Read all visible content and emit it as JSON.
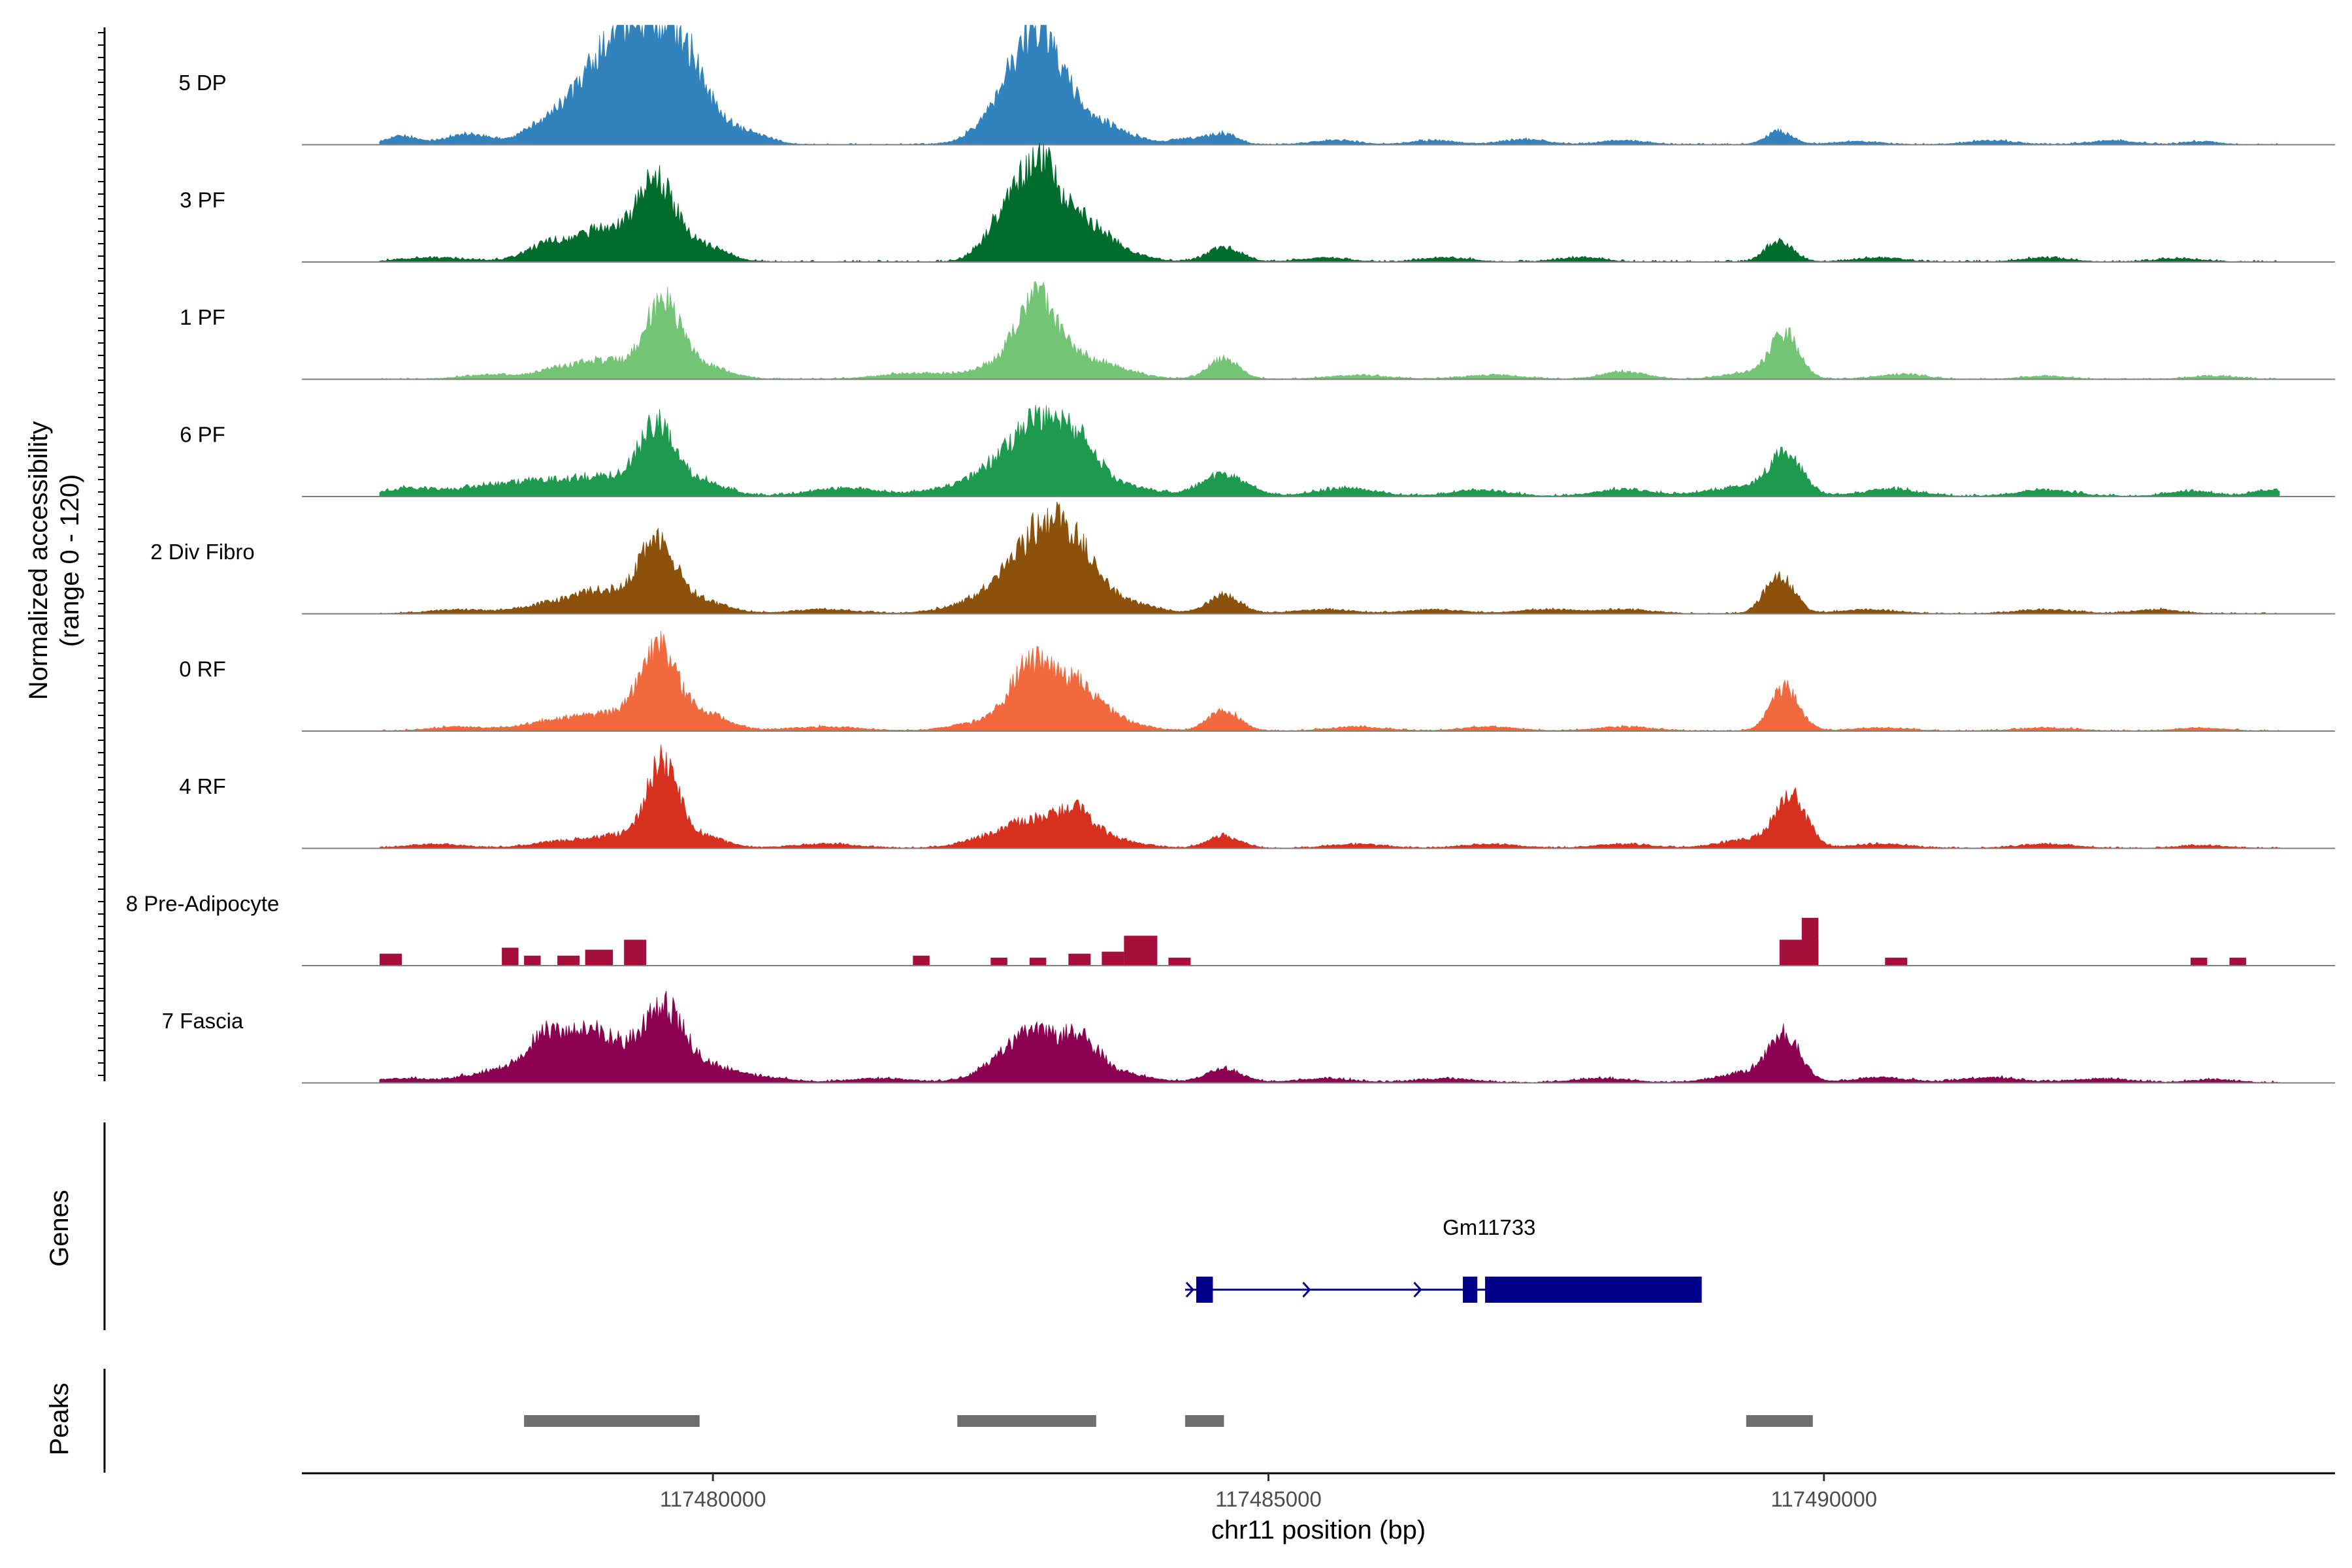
{
  "chart_data": {
    "type": "area",
    "title": "",
    "xlabel": "chr11 position (bp)",
    "ylabel_line1": "Normalized accessibility",
    "ylabel_line2": "(range 0 - 120)",
    "yrange": [
      0,
      120
    ],
    "xlim": [
      117476300,
      117494600
    ],
    "xticks": [
      {
        "value": 117480000,
        "label": "117480000"
      },
      {
        "value": 117485000,
        "label": "117485000"
      },
      {
        "value": 117490000,
        "label": "117490000"
      }
    ],
    "tracks": [
      {
        "name": "5 DP",
        "color": "#3182bd",
        "peaks": [
          [
            117477200,
            8,
            150
          ],
          [
            117477800,
            10,
            200
          ],
          [
            117478500,
            18,
            200
          ],
          [
            117478900,
            38,
            250
          ],
          [
            117479150,
            70,
            220
          ],
          [
            117479500,
            80,
            220
          ],
          [
            117479750,
            60,
            200
          ],
          [
            117480100,
            12,
            180
          ],
          [
            117480400,
            8,
            150
          ],
          [
            117482550,
            25,
            200
          ],
          [
            117482800,
            55,
            180
          ],
          [
            117483000,
            60,
            180
          ],
          [
            117483300,
            28,
            250
          ],
          [
            117483700,
            6,
            200
          ],
          [
            117484300,
            6,
            150
          ],
          [
            117484600,
            10,
            120
          ],
          [
            117485600,
            4,
            200
          ],
          [
            117486500,
            4,
            200
          ],
          [
            117487300,
            5,
            200
          ],
          [
            117488200,
            4,
            200
          ],
          [
            117489600,
            13,
            120
          ],
          [
            117490300,
            3,
            200
          ],
          [
            117491500,
            4,
            200
          ],
          [
            117492600,
            4,
            200
          ],
          [
            117493400,
            3,
            150
          ]
        ],
        "floor": 1.5
      },
      {
        "name": "3 PF",
        "color": "#006d2c",
        "peaks": [
          [
            117477500,
            4,
            300
          ],
          [
            117478500,
            14,
            200
          ],
          [
            117478900,
            18,
            250
          ],
          [
            117479150,
            20,
            220
          ],
          [
            117479500,
            75,
            160
          ],
          [
            117479900,
            16,
            200
          ],
          [
            117482650,
            48,
            180
          ],
          [
            117482950,
            80,
            160
          ],
          [
            117483300,
            40,
            220
          ],
          [
            117483700,
            8,
            200
          ],
          [
            117484600,
            14,
            150
          ],
          [
            117485500,
            4,
            200
          ],
          [
            117486600,
            4,
            200
          ],
          [
            117487800,
            4,
            200
          ],
          [
            117489600,
            22,
            120
          ],
          [
            117490500,
            4,
            200
          ],
          [
            117492000,
            4,
            200
          ],
          [
            117493200,
            3,
            200
          ]
        ],
        "floor": 2
      },
      {
        "name": "1 PF",
        "color": "#74c476",
        "peaks": [
          [
            117478000,
            4,
            250
          ],
          [
            117478600,
            8,
            200
          ],
          [
            117479050,
            18,
            250
          ],
          [
            117479550,
            75,
            150
          ],
          [
            117479900,
            14,
            220
          ],
          [
            117481800,
            6,
            300
          ],
          [
            117482600,
            14,
            250
          ],
          [
            117482900,
            70,
            160
          ],
          [
            117483200,
            22,
            250
          ],
          [
            117483600,
            8,
            250
          ],
          [
            117484600,
            20,
            140
          ],
          [
            117485800,
            4,
            250
          ],
          [
            117487000,
            4,
            250
          ],
          [
            117488200,
            7,
            200
          ],
          [
            117489300,
            6,
            200
          ],
          [
            117489650,
            45,
            130
          ],
          [
            117490700,
            5,
            200
          ],
          [
            117492000,
            3,
            200
          ],
          [
            117493500,
            3,
            200
          ]
        ],
        "floor": 1.5
      },
      {
        "name": "6 PF",
        "color": "#1d9a4e",
        "peaks": [
          [
            117477300,
            8,
            250
          ],
          [
            117478000,
            10,
            250
          ],
          [
            117478500,
            14,
            250
          ],
          [
            117479050,
            18,
            250
          ],
          [
            117479500,
            68,
            160
          ],
          [
            117479900,
            14,
            220
          ],
          [
            117481200,
            8,
            300
          ],
          [
            117482150,
            8,
            250
          ],
          [
            117482600,
            30,
            220
          ],
          [
            117482950,
            62,
            200
          ],
          [
            117483300,
            46,
            180
          ],
          [
            117483700,
            10,
            250
          ],
          [
            117484600,
            22,
            200
          ],
          [
            117485700,
            8,
            250
          ],
          [
            117486900,
            6,
            250
          ],
          [
            117488200,
            7,
            250
          ],
          [
            117489200,
            8,
            250
          ],
          [
            117489650,
            42,
            150
          ],
          [
            117490600,
            7,
            250
          ],
          [
            117492000,
            6,
            250
          ],
          [
            117493300,
            5,
            200
          ],
          [
            117494000,
            6,
            150
          ]
        ],
        "floor": 2.5
      },
      {
        "name": "2 Div Fibro",
        "color": "#8c510a",
        "peaks": [
          [
            117477700,
            4,
            250
          ],
          [
            117478500,
            8,
            250
          ],
          [
            117479000,
            22,
            250
          ],
          [
            117479500,
            68,
            170
          ],
          [
            117479900,
            12,
            220
          ],
          [
            117481000,
            4,
            300
          ],
          [
            117482300,
            8,
            250
          ],
          [
            117482700,
            35,
            220
          ],
          [
            117483000,
            68,
            180
          ],
          [
            117483300,
            52,
            180
          ],
          [
            117483700,
            12,
            250
          ],
          [
            117484600,
            18,
            150
          ],
          [
            117485500,
            4,
            250
          ],
          [
            117486500,
            4,
            250
          ],
          [
            117487500,
            4,
            250
          ],
          [
            117488200,
            4,
            250
          ],
          [
            117489600,
            38,
            130
          ],
          [
            117490400,
            4,
            250
          ],
          [
            117492000,
            4,
            250
          ],
          [
            117493000,
            4,
            200
          ]
        ],
        "floor": 1.5
      },
      {
        "name": "0 RF",
        "color": "#f16a3e",
        "peaks": [
          [
            117477700,
            4,
            250
          ],
          [
            117478500,
            8,
            250
          ],
          [
            117479000,
            16,
            250
          ],
          [
            117479500,
            82,
            160
          ],
          [
            117479900,
            18,
            220
          ],
          [
            117481000,
            4,
            300
          ],
          [
            117482400,
            8,
            250
          ],
          [
            117482850,
            62,
            180
          ],
          [
            117483250,
            44,
            200
          ],
          [
            117483600,
            10,
            250
          ],
          [
            117484600,
            20,
            140
          ],
          [
            117485800,
            4,
            250
          ],
          [
            117487000,
            4,
            250
          ],
          [
            117488200,
            4,
            250
          ],
          [
            117489650,
            42,
            130
          ],
          [
            117490500,
            3,
            250
          ],
          [
            117492000,
            3,
            250
          ],
          [
            117493400,
            3,
            200
          ]
        ],
        "floor": 1.5
      },
      {
        "name": "4 RF",
        "color": "#d7301f",
        "peaks": [
          [
            117477500,
            4,
            250
          ],
          [
            117478600,
            6,
            250
          ],
          [
            117479150,
            12,
            250
          ],
          [
            117479550,
            82,
            140
          ],
          [
            117479900,
            12,
            200
          ],
          [
            117481000,
            4,
            300
          ],
          [
            117482500,
            10,
            250
          ],
          [
            117482850,
            22,
            200
          ],
          [
            117483250,
            36,
            170
          ],
          [
            117483600,
            8,
            250
          ],
          [
            117484600,
            12,
            150
          ],
          [
            117485800,
            4,
            250
          ],
          [
            117487000,
            4,
            250
          ],
          [
            117488200,
            4,
            250
          ],
          [
            117489300,
            8,
            250
          ],
          [
            117489700,
            52,
            140
          ],
          [
            117490500,
            4,
            250
          ],
          [
            117492000,
            4,
            250
          ],
          [
            117493400,
            3,
            200
          ]
        ],
        "floor": 1.5
      },
      {
        "name": "8 Pre-Adipocyte",
        "color": "#a50f3c",
        "blocks": [
          [
            117477000,
            117477200,
            12
          ],
          [
            117478100,
            117478250,
            18
          ],
          [
            117478300,
            117478450,
            10
          ],
          [
            117478600,
            117478800,
            10
          ],
          [
            117478850,
            117479100,
            16
          ],
          [
            117479200,
            117479400,
            26
          ],
          [
            117481800,
            117481950,
            10
          ],
          [
            117482500,
            117482650,
            8
          ],
          [
            117482850,
            117483000,
            8
          ],
          [
            117483200,
            117483400,
            12
          ],
          [
            117483500,
            117483700,
            14
          ],
          [
            117483700,
            117484000,
            30
          ],
          [
            117484100,
            117484300,
            8
          ],
          [
            117489600,
            117489950,
            26
          ],
          [
            117489800,
            117489950,
            48
          ],
          [
            117490550,
            117490750,
            8
          ],
          [
            117493300,
            117493450,
            8
          ],
          [
            117493650,
            117493800,
            8
          ]
        ]
      },
      {
        "name": "7 Fascia",
        "color": "#8c0051",
        "peaks": [
          [
            117477200,
            4,
            250
          ],
          [
            117478000,
            10,
            250
          ],
          [
            117478500,
            44,
            200
          ],
          [
            117478900,
            36,
            200
          ],
          [
            117479200,
            22,
            250
          ],
          [
            117479550,
            64,
            170
          ],
          [
            117479900,
            18,
            220
          ],
          [
            117480400,
            6,
            250
          ],
          [
            117481500,
            4,
            300
          ],
          [
            117482600,
            18,
            220
          ],
          [
            117482900,
            40,
            200
          ],
          [
            117483300,
            40,
            180
          ],
          [
            117483700,
            8,
            250
          ],
          [
            117484600,
            14,
            160
          ],
          [
            117485500,
            4,
            250
          ],
          [
            117486600,
            4,
            250
          ],
          [
            117488000,
            4,
            250
          ],
          [
            117489300,
            10,
            250
          ],
          [
            117489650,
            45,
            140
          ],
          [
            117490500,
            5,
            250
          ],
          [
            117491500,
            5,
            250
          ],
          [
            117492500,
            4,
            250
          ],
          [
            117493500,
            3,
            200
          ]
        ],
        "floor": 2
      }
    ],
    "genes_title": "Genes",
    "gene": {
      "name": "Gm11733",
      "color": "#00008b",
      "start": 117484250,
      "end": 117488900,
      "exons": [
        [
          117484350,
          117484500
        ],
        [
          117486750,
          117486880
        ],
        [
          117486950,
          117488900
        ]
      ],
      "strand": "+"
    },
    "peaks_title": "Peaks",
    "peak_color": "#6e6e6e",
    "peak_regions": [
      [
        117478300,
        117479880
      ],
      [
        117482200,
        117483450
      ],
      [
        117484250,
        117484600
      ],
      [
        117489300,
        117489900
      ]
    ]
  }
}
